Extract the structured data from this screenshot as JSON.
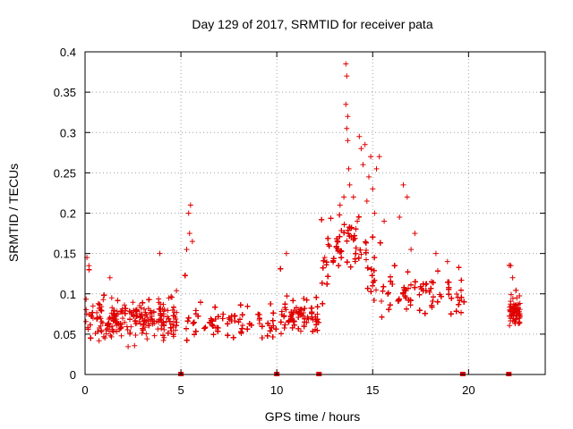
{
  "chart_data": {
    "type": "scatter",
    "title": "Day 129 of 2017, SRMTID for receiver pata",
    "xlabel": "GPS time / hours",
    "ylabel": "SRMTID / TECUs",
    "xlim": [
      0,
      24
    ],
    "ylim": [
      0,
      0.4
    ],
    "xticks": [
      0,
      5,
      10,
      15,
      20
    ],
    "yticks": [
      0,
      0.05,
      0.1,
      0.15,
      0.2,
      0.25,
      0.3,
      0.35,
      0.4
    ],
    "ytick_labels": [
      "0",
      "0.05",
      "0.1",
      "0.15",
      "0.2",
      "0.25",
      "0.3",
      "0.35",
      "0.4"
    ],
    "grid": true,
    "marker": "+",
    "color": "#e00000",
    "segments": [
      {
        "x_start": 0.0,
        "x_end": 4.8,
        "baseline": 0.065,
        "spread": 0.025
      },
      {
        "x_start": 5.0,
        "x_end": 10.0,
        "baseline": 0.06,
        "spread": 0.022
      },
      {
        "x_start": 10.1,
        "x_end": 12.2,
        "baseline": 0.068,
        "spread": 0.022
      },
      {
        "x_start": 12.2,
        "x_end": 15.2,
        "baseline": 0.11,
        "spread": 0.04
      },
      {
        "x_start": 15.2,
        "x_end": 19.8,
        "baseline": 0.095,
        "spread": 0.03
      },
      {
        "x_start": 22.1,
        "x_end": 22.7,
        "baseline": 0.075,
        "spread": 0.018
      }
    ],
    "highlights": [
      {
        "x": 0.1,
        "y": 0.145
      },
      {
        "x": 0.2,
        "y": 0.135
      },
      {
        "x": 1.3,
        "y": 0.12
      },
      {
        "x": 3.9,
        "y": 0.15
      },
      {
        "x": 5.4,
        "y": 0.2
      },
      {
        "x": 5.5,
        "y": 0.21
      },
      {
        "x": 5.45,
        "y": 0.175
      },
      {
        "x": 5.6,
        "y": 0.165
      },
      {
        "x": 5.3,
        "y": 0.155
      },
      {
        "x": 10.5,
        "y": 0.15
      },
      {
        "x": 12.5,
        "y": 0.145
      },
      {
        "x": 13.3,
        "y": 0.21
      },
      {
        "x": 13.5,
        "y": 0.22
      },
      {
        "x": 13.6,
        "y": 0.385
      },
      {
        "x": 13.65,
        "y": 0.37
      },
      {
        "x": 13.6,
        "y": 0.335
      },
      {
        "x": 13.7,
        "y": 0.32
      },
      {
        "x": 13.65,
        "y": 0.305
      },
      {
        "x": 13.7,
        "y": 0.29
      },
      {
        "x": 13.75,
        "y": 0.255
      },
      {
        "x": 13.8,
        "y": 0.235
      },
      {
        "x": 14.0,
        "y": 0.22
      },
      {
        "x": 14.3,
        "y": 0.295
      },
      {
        "x": 14.4,
        "y": 0.28
      },
      {
        "x": 14.5,
        "y": 0.26
      },
      {
        "x": 14.6,
        "y": 0.285
      },
      {
        "x": 14.8,
        "y": 0.245
      },
      {
        "x": 14.9,
        "y": 0.27
      },
      {
        "x": 15.0,
        "y": 0.23
      },
      {
        "x": 15.2,
        "y": 0.255
      },
      {
        "x": 15.35,
        "y": 0.27
      },
      {
        "x": 15.1,
        "y": 0.2
      },
      {
        "x": 14.2,
        "y": 0.19
      },
      {
        "x": 14.7,
        "y": 0.215
      },
      {
        "x": 15.6,
        "y": 0.19
      },
      {
        "x": 16.4,
        "y": 0.195
      },
      {
        "x": 16.6,
        "y": 0.235
      },
      {
        "x": 16.8,
        "y": 0.22
      },
      {
        "x": 17.2,
        "y": 0.175
      },
      {
        "x": 17.0,
        "y": 0.155
      },
      {
        "x": 18.3,
        "y": 0.15
      },
      {
        "x": 18.9,
        "y": 0.14
      },
      {
        "x": 22.2,
        "y": 0.135
      },
      {
        "x": 22.3,
        "y": 0.12
      }
    ],
    "gap_markers_x": [
      5.0,
      10.0,
      12.2,
      19.7,
      22.1
    ]
  }
}
